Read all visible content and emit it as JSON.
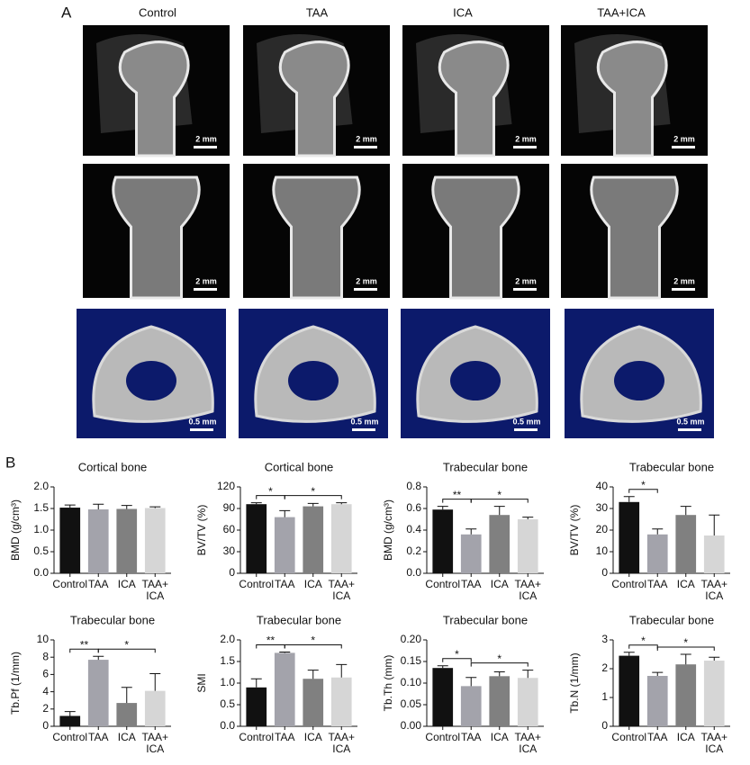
{
  "panel_a": {
    "label": "A",
    "columns": [
      "Control",
      "TAA",
      "ICA",
      "TAA+ICA"
    ],
    "scale_bars": [
      [
        "2 mm",
        "2 mm",
        "2 mm",
        "2 mm"
      ],
      [
        "2 mm",
        "2 mm",
        "2 mm",
        "2 mm"
      ],
      [
        "0.5 mm",
        "0.5 mm",
        "0.5 mm",
        "0.5 mm"
      ]
    ]
  },
  "panel_b": {
    "label": "B"
  },
  "chart_data": [
    {
      "type": "bar",
      "title": "Cortical bone",
      "ylabel": "BMD (g/cm³)",
      "categories": [
        "Control",
        "TAA",
        "ICA",
        "TAA+\nICA"
      ],
      "values": [
        1.52,
        1.48,
        1.49,
        1.51
      ],
      "errors": [
        0.06,
        0.12,
        0.08,
        0.03
      ],
      "colors": [
        "#111111",
        "#a3a3ab",
        "#808080",
        "#d6d6d6"
      ],
      "ylim": [
        0,
        2
      ],
      "yticks": [
        {
          "value": 0,
          "label": "0.0"
        },
        0.5,
        {
          "value": 1,
          "label": "1.0"
        },
        1.5,
        {
          "value": 2,
          "label": "2.0"
        }
      ],
      "significance": []
    },
    {
      "type": "bar",
      "title": "Cortical bone",
      "ylabel": "BV/TV (%)",
      "categories": [
        "Control",
        "TAA",
        "ICA",
        "TAA+\nICA"
      ],
      "values": [
        96,
        78,
        93,
        96
      ],
      "errors": [
        2,
        9,
        4,
        2
      ],
      "colors": [
        "#111111",
        "#a3a3ab",
        "#808080",
        "#d6d6d6"
      ],
      "ylim": [
        0,
        120
      ],
      "yticks": [
        0,
        30,
        60,
        90,
        120
      ],
      "significance": [
        {
          "from": 0,
          "to": 1,
          "label": "*"
        },
        {
          "from": 1,
          "to": 3,
          "label": "*"
        }
      ]
    },
    {
      "type": "bar",
      "title": "Trabecular bone",
      "ylabel": "BMD (g/cm³)",
      "categories": [
        "Control",
        "TAA",
        "ICA",
        "TAA+\nICA"
      ],
      "values": [
        0.59,
        0.36,
        0.54,
        0.5
      ],
      "errors": [
        0.03,
        0.05,
        0.08,
        0.02
      ],
      "colors": [
        "#111111",
        "#a3a3ab",
        "#808080",
        "#d6d6d6"
      ],
      "ylim": [
        0,
        0.8
      ],
      "yticks": [
        {
          "value": 0,
          "label": "0.0"
        },
        0.2,
        0.4,
        0.6,
        0.8
      ],
      "significance": [
        {
          "from": 0,
          "to": 1,
          "label": "**"
        },
        {
          "from": 1,
          "to": 3,
          "label": "*"
        }
      ]
    },
    {
      "type": "bar",
      "title": "Trabecular bone",
      "ylabel": "BV/TV (%)",
      "categories": [
        "Control",
        "TAA",
        "ICA",
        "TAA+\nICA"
      ],
      "values": [
        33,
        18,
        27,
        17.5
      ],
      "errors": [
        2.5,
        2.5,
        4,
        9.5
      ],
      "colors": [
        "#111111",
        "#a3a3ab",
        "#808080",
        "#d6d6d6"
      ],
      "ylim": [
        0,
        40
      ],
      "yticks": [
        0,
        10,
        20,
        30,
        40
      ],
      "significance": [
        {
          "from": 0,
          "to": 1,
          "label": "*"
        }
      ]
    },
    {
      "type": "bar",
      "title": "Trabecular bone",
      "ylabel": "Tb.Pf (1/mm)",
      "categories": [
        "Control",
        "TAA",
        "ICA",
        "TAA+\nICA"
      ],
      "values": [
        1.2,
        7.7,
        2.7,
        4.1
      ],
      "errors": [
        0.5,
        0.4,
        1.8,
        2
      ],
      "colors": [
        "#111111",
        "#a3a3ab",
        "#808080",
        "#d6d6d6"
      ],
      "ylim": [
        0,
        10
      ],
      "yticks": [
        0,
        2,
        4,
        6,
        8,
        10
      ],
      "significance": [
        {
          "from": 0,
          "to": 1,
          "label": "**"
        },
        {
          "from": 1,
          "to": 3,
          "label": "*"
        }
      ]
    },
    {
      "type": "bar",
      "title": "Trabecular bone",
      "ylabel": "SMI",
      "categories": [
        "Control",
        "TAA",
        "ICA",
        "TAA+\nICA"
      ],
      "values": [
        0.9,
        1.7,
        1.1,
        1.13
      ],
      "errors": [
        0.2,
        0.02,
        0.2,
        0.3
      ],
      "colors": [
        "#111111",
        "#a3a3ab",
        "#808080",
        "#d6d6d6"
      ],
      "ylim": [
        0,
        2
      ],
      "yticks": [
        {
          "value": 0,
          "label": "0.0"
        },
        0.5,
        {
          "value": 1,
          "label": "1.0"
        },
        1.5,
        {
          "value": 2,
          "label": "2.0"
        }
      ],
      "significance": [
        {
          "from": 0,
          "to": 1,
          "label": "**"
        },
        {
          "from": 1,
          "to": 3,
          "label": "*"
        }
      ]
    },
    {
      "type": "bar",
      "title": "Trabecular bone",
      "ylabel": "Tb.Th (mm)",
      "categories": [
        "Control",
        "TAA",
        "ICA",
        "TAA+\nICA"
      ],
      "values": [
        0.135,
        0.093,
        0.116,
        0.112
      ],
      "errors": [
        0.005,
        0.02,
        0.01,
        0.018
      ],
      "colors": [
        "#111111",
        "#a3a3ab",
        "#808080",
        "#d6d6d6"
      ],
      "ylim": [
        0,
        0.2
      ],
      "yticks": [
        {
          "value": 0,
          "label": "0.00"
        },
        0.05,
        {
          "value": 0.1,
          "label": "0.10"
        },
        0.15,
        {
          "value": 0.2,
          "label": "0.20"
        }
      ],
      "significance": [
        {
          "from": 0,
          "to": 1,
          "label": "*"
        },
        {
          "from": 1,
          "to": 3,
          "label": "*"
        }
      ]
    },
    {
      "type": "bar",
      "title": "Trabecular bone",
      "ylabel": "Tb.N (1/mm)",
      "categories": [
        "Control",
        "TAA",
        "ICA",
        "TAA+\nICA"
      ],
      "values": [
        2.45,
        1.75,
        2.15,
        2.28
      ],
      "errors": [
        0.12,
        0.12,
        0.35,
        0.12
      ],
      "colors": [
        "#111111",
        "#a3a3ab",
        "#808080",
        "#d6d6d6"
      ],
      "ylim": [
        0,
        3
      ],
      "yticks": [
        0,
        1,
        2,
        3
      ],
      "significance": [
        {
          "from": 0,
          "to": 1,
          "label": "*"
        },
        {
          "from": 1,
          "to": 3,
          "label": "*"
        }
      ]
    }
  ]
}
